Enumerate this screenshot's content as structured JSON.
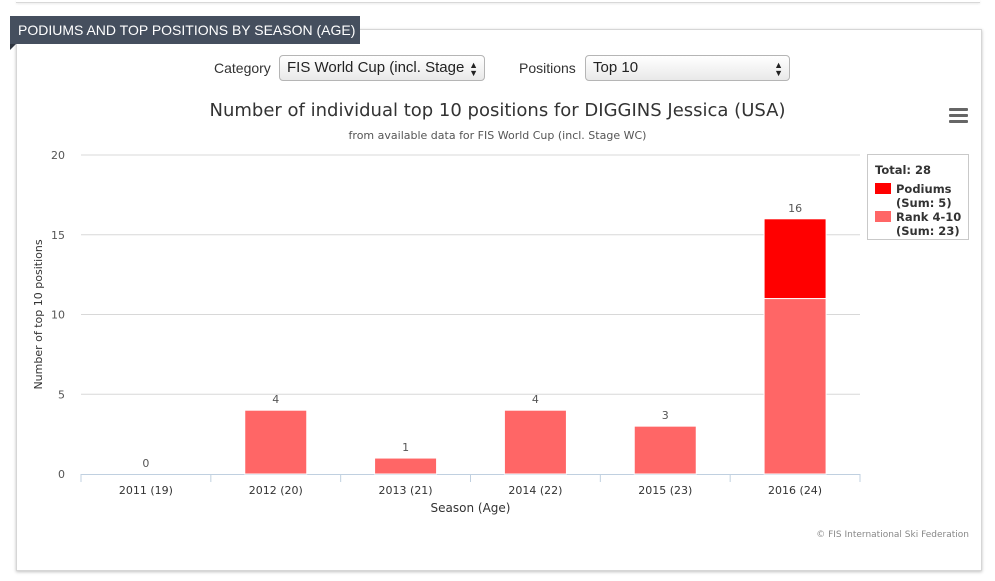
{
  "panel": {
    "title": "PODIUMS AND TOP POSITIONS BY SEASON (AGE)"
  },
  "controls": {
    "category_label": "Category",
    "category_value": "FIS World Cup (incl. Stage",
    "positions_label": "Positions",
    "positions_value": "Top 10"
  },
  "menu_icon": "hamburger-menu-icon",
  "credits": "© FIS International Ski Federation",
  "legend": {
    "total": "Total: 28",
    "items": [
      {
        "name": "Podiums",
        "sum": "(Sum: 5)",
        "color": "#ff0000"
      },
      {
        "name": "Rank 4-10",
        "sum": "(Sum: 23)",
        "color": "#ff6666"
      }
    ]
  },
  "chart_data": {
    "type": "bar",
    "stacked": true,
    "title": "Number of individual top 10 positions for DIGGINS Jessica (USA)",
    "subtitle": "from available data for FIS World Cup (incl. Stage WC)",
    "xlabel": "Season (Age)",
    "ylabel": "Number of top 10 positions",
    "categories": [
      "2011 (19)",
      "2012 (20)",
      "2013 (21)",
      "2014 (22)",
      "2015 (23)",
      "2016 (24)"
    ],
    "series": [
      {
        "name": "Rank 4-10",
        "color": "#ff6666",
        "values": [
          0,
          4,
          1,
          4,
          3,
          11
        ]
      },
      {
        "name": "Podiums",
        "color": "#ff0000",
        "values": [
          0,
          0,
          0,
          0,
          0,
          5
        ]
      }
    ],
    "totals": [
      0,
      4,
      1,
      4,
      3,
      16
    ],
    "ylim": [
      0,
      20
    ],
    "yticks": [
      0,
      5,
      10,
      15,
      20
    ],
    "grid": true,
    "legend_position": "top-right"
  }
}
